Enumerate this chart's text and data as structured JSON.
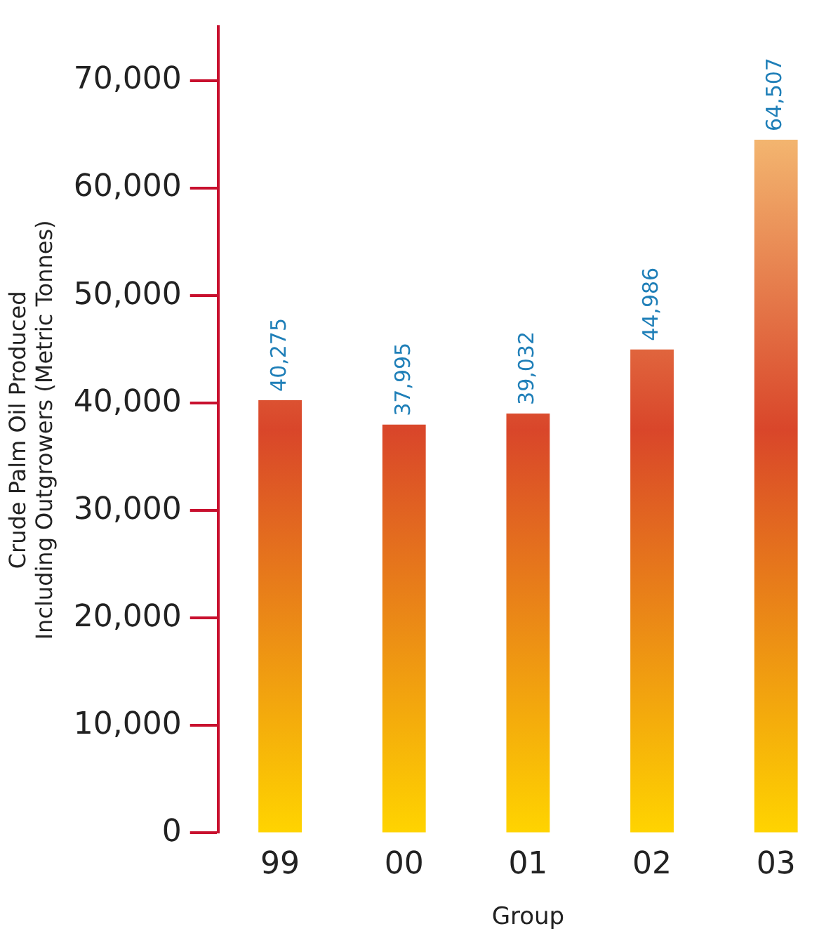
{
  "chart_data": {
    "type": "bar",
    "xlabel": "Group",
    "ylabel": "Crude Palm Oil Produced\nIncluding Outgrowers (Metric Tonnes)",
    "categories": [
      "99",
      "00",
      "01",
      "02",
      "03"
    ],
    "values": [
      40275,
      37995,
      39032,
      44986,
      64507
    ],
    "value_labels": [
      "40,275",
      "37,995",
      "39,032",
      "44,986",
      "64,507"
    ],
    "color": "#d9462a",
    "ylim": [
      0,
      75000
    ],
    "yticks": [
      0,
      {
        "value": 10000,
        "label": "10,000"
      },
      {
        "value": 20000,
        "label": "20,000"
      },
      {
        "value": 30000,
        "label": "30,000"
      },
      {
        "value": 40000,
        "label": "40,000"
      },
      {
        "value": 50000,
        "label": "50,000"
      },
      {
        "value": 60000,
        "label": "60,000"
      },
      {
        "value": 70000,
        "label": "70,000"
      }
    ],
    "grid": false,
    "legend": false
  }
}
